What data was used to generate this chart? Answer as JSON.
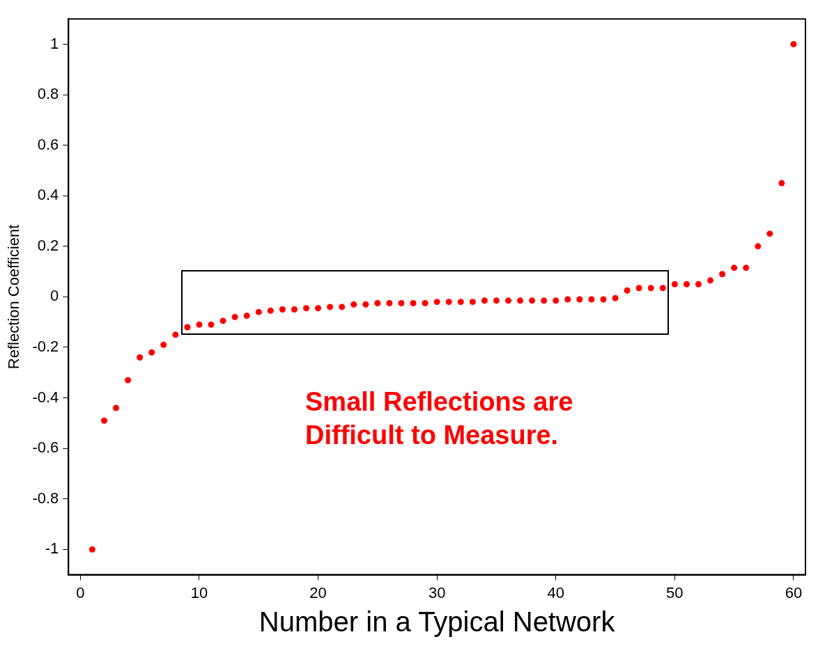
{
  "chart_data": {
    "type": "scatter",
    "xlabel": "Number in a Typical Network",
    "ylabel": "Reflection Coefficient",
    "annotations": [
      "Small Reflections are Difficult to Measure."
    ],
    "x": [
      1,
      2,
      3,
      4,
      5,
      6,
      7,
      8,
      9,
      10,
      11,
      12,
      13,
      14,
      15,
      16,
      17,
      18,
      19,
      20,
      21,
      22,
      23,
      24,
      25,
      26,
      27,
      28,
      29,
      30,
      31,
      32,
      33,
      34,
      35,
      36,
      37,
      38,
      39,
      40,
      41,
      42,
      43,
      44,
      45,
      46,
      47,
      48,
      49,
      50,
      51,
      52,
      53,
      54,
      55,
      56,
      57,
      58,
      59,
      60
    ],
    "series": [
      {
        "color": "#ff0000",
        "values": [
          -1.0,
          -0.49,
          -0.44,
          -0.33,
          -0.24,
          -0.22,
          -0.19,
          -0.15,
          -0.12,
          -0.11,
          -0.11,
          -0.095,
          -0.08,
          -0.075,
          -0.06,
          -0.055,
          -0.05,
          -0.05,
          -0.045,
          -0.045,
          -0.04,
          -0.04,
          -0.03,
          -0.03,
          -0.025,
          -0.025,
          -0.025,
          -0.025,
          -0.025,
          -0.02,
          -0.02,
          -0.02,
          -0.02,
          -0.015,
          -0.015,
          -0.015,
          -0.015,
          -0.015,
          -0.015,
          -0.015,
          -0.01,
          -0.01,
          -0.01,
          -0.01,
          -0.005,
          0.025,
          0.035,
          0.035,
          0.035,
          0.05,
          0.05,
          0.05,
          0.065,
          0.09,
          0.115,
          0.115,
          0.2,
          0.25,
          0.45,
          1.0
        ]
      }
    ],
    "xlim": [
      -1,
      61
    ],
    "ylim": [
      -1.1,
      1.1
    ],
    "xticks": [
      0,
      10,
      20,
      30,
      40,
      50,
      60
    ],
    "yticks": [
      -1,
      -0.8,
      -0.6,
      -0.4,
      -0.2,
      0,
      0.2,
      0.4,
      0.6,
      0.8,
      1
    ],
    "grid": false,
    "legend": false,
    "marker": "circle"
  }
}
